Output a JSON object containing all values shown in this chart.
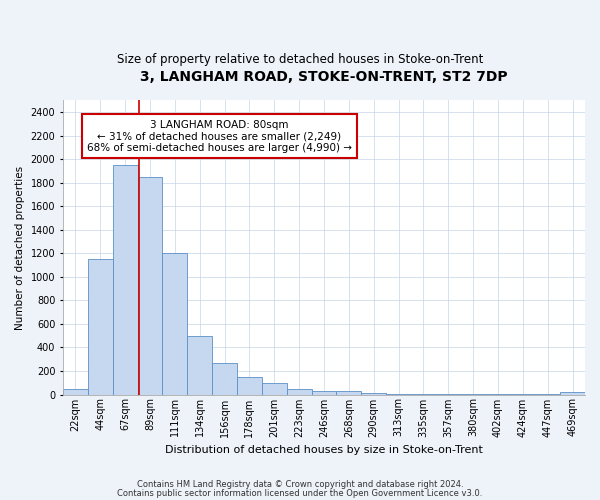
{
  "title1": "3, LANGHAM ROAD, STOKE-ON-TRENT, ST2 7DP",
  "title2": "Size of property relative to detached houses in Stoke-on-Trent",
  "xlabel": "Distribution of detached houses by size in Stoke-on-Trent",
  "ylabel": "Number of detached properties",
  "categories": [
    "22sqm",
    "44sqm",
    "67sqm",
    "89sqm",
    "111sqm",
    "134sqm",
    "156sqm",
    "178sqm",
    "201sqm",
    "223sqm",
    "246sqm",
    "268sqm",
    "290sqm",
    "313sqm",
    "335sqm",
    "357sqm",
    "380sqm",
    "402sqm",
    "424sqm",
    "447sqm",
    "469sqm"
  ],
  "values": [
    50,
    1150,
    1950,
    1850,
    1200,
    500,
    270,
    150,
    100,
    50,
    30,
    30,
    15,
    5,
    5,
    5,
    5,
    5,
    5,
    5,
    20
  ],
  "bar_color": "#c5d8f0",
  "bar_edge_color": "#5b8fc7",
  "annotation_line1": "3 LANGHAM ROAD: 80sqm",
  "annotation_line2": "← 31% of detached houses are smaller (2,249)",
  "annotation_line3": "68% of semi-detached houses are larger (4,990) →",
  "annotation_box_color": "#ffffff",
  "annotation_box_edge": "#cc0000",
  "vline_color": "#cc0000",
  "vline_x": 2.55,
  "ylim": [
    0,
    2500
  ],
  "yticks": [
    0,
    200,
    400,
    600,
    800,
    1000,
    1200,
    1400,
    1600,
    1800,
    2000,
    2200,
    2400
  ],
  "footnote1": "Contains HM Land Registry data © Crown copyright and database right 2024.",
  "footnote2": "Contains public sector information licensed under the Open Government Licence v3.0.",
  "bg_color": "#eef2f9",
  "plot_bg_color": "#ffffff",
  "title1_fontsize": 10,
  "title2_fontsize": 8.5,
  "xlabel_fontsize": 8,
  "ylabel_fontsize": 7.5,
  "tick_fontsize": 7,
  "annot_fontsize": 7.5,
  "footnote_fontsize": 6
}
